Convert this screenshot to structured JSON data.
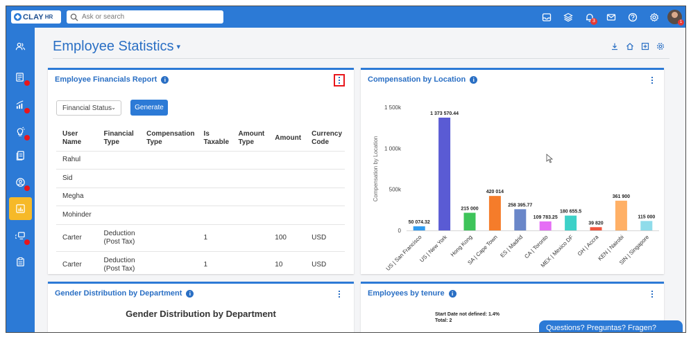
{
  "app": {
    "logo_text": "CLAY",
    "logo_sub": "HR",
    "search_placeholder": "Ask or search",
    "notification_count": "3",
    "avatar_badge": "1"
  },
  "topbar": {
    "icons": [
      "inbox-icon",
      "layers-icon",
      "bell-icon",
      "mail-icon",
      "help-icon",
      "settings-icon"
    ]
  },
  "sidebar": {
    "items": [
      {
        "icon": "people-icon",
        "dot": false,
        "active": false
      },
      {
        "icon": "id-card-icon",
        "dot": true,
        "active": false
      },
      {
        "icon": "chart-growth-icon",
        "dot": true,
        "active": false
      },
      {
        "icon": "lightbulb-icon",
        "dot": true,
        "active": false
      },
      {
        "icon": "document-icon",
        "dot": false,
        "active": false
      },
      {
        "icon": "user-circle-icon",
        "dot": true,
        "active": false
      },
      {
        "icon": "reports-icon",
        "dot": false,
        "active": true
      },
      {
        "icon": "desk-icon",
        "dot": true,
        "active": false
      },
      {
        "icon": "clipboard-icon",
        "dot": false,
        "active": false
      }
    ]
  },
  "page": {
    "title": "Employee Statistics",
    "caret": "▾"
  },
  "financials": {
    "title": "Employee Financials Report",
    "select_value": "Financial Status",
    "generate_label": "Generate",
    "columns": [
      "User Name",
      "Financial Type",
      "Compensation Type",
      "Is Taxable",
      "Amount Type",
      "Amount",
      "Currency Code"
    ],
    "rows": [
      {
        "user": "Rahul",
        "type": "",
        "comp": "",
        "taxable": "",
        "amount_type": "",
        "amount": "",
        "currency": ""
      },
      {
        "user": "Sid",
        "type": "",
        "comp": "",
        "taxable": "",
        "amount_type": "",
        "amount": "",
        "currency": ""
      },
      {
        "user": "Megha",
        "type": "",
        "comp": "",
        "taxable": "",
        "amount_type": "",
        "amount": "",
        "currency": ""
      },
      {
        "user": "Mohinder",
        "type": "",
        "comp": "",
        "taxable": "",
        "amount_type": "",
        "amount": "",
        "currency": ""
      },
      {
        "user": "Carter",
        "type": "Deduction (Post Tax)",
        "comp": "",
        "taxable": "1",
        "amount_type": "",
        "amount": "100",
        "currency": "USD"
      },
      {
        "user": "Carter",
        "type": "Deduction (Post Tax)",
        "comp": "",
        "taxable": "1",
        "amount_type": "",
        "amount": "10",
        "currency": "USD"
      }
    ]
  },
  "compensation": {
    "title": "Compensation by Location"
  },
  "gender": {
    "card_title": "Gender Distribution by Department",
    "chart_title": "Gender Distribution by Department"
  },
  "tenure": {
    "card_title": "Employees by tenure",
    "label_line1": "Start Date not defined: 1.4%",
    "label_line2": "Total: 2"
  },
  "questions_label": "Questions? Preguntas? Fragen?",
  "chart_data": {
    "type": "bar",
    "ylabel": "Compensation by Location",
    "ylim": [
      0,
      1500000
    ],
    "yticks": [
      "0",
      "500k",
      "1 000k",
      "1 500k"
    ],
    "ytick_values": [
      0,
      500000,
      1000000,
      1500000
    ],
    "categories": [
      "US | San Francisco",
      "US | New York",
      "Hong Kong",
      "SA | Cape Town",
      "ES | Madrid",
      "CA | Toronto",
      "MEX | Mexico DF",
      "GH | Accra",
      "KEN | Nairobi",
      "SIN | Singapore"
    ],
    "values": [
      50074.32,
      1373570.44,
      215000,
      420014,
      258395.77,
      109783.25,
      180655.5,
      39820,
      361900,
      115000
    ],
    "labels": [
      "50 074.32",
      "1 373 570.44",
      "215 000",
      "420 014",
      "258 395.77",
      "109 783.25",
      "180 655.5",
      "39 820",
      "361 900",
      "115 000"
    ],
    "colors": [
      "#2f9bf0",
      "#5a5bd4",
      "#3ec45a",
      "#f57c2a",
      "#6a87c9",
      "#e56ef5",
      "#3dd1c8",
      "#f0553e",
      "#ffb066",
      "#8fdcea"
    ],
    "grid": false,
    "legend": "none"
  }
}
